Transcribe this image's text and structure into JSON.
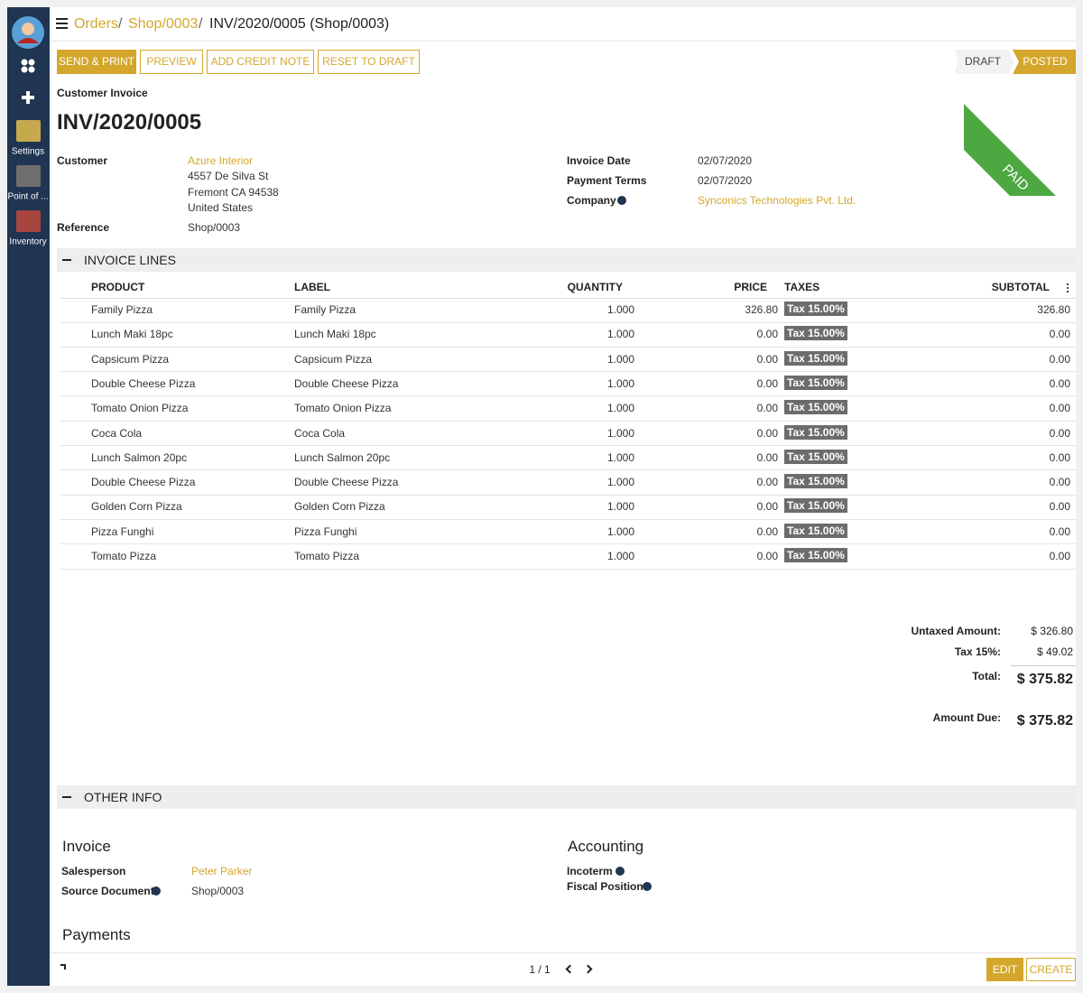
{
  "sidebar": {
    "apps": [
      "Settings",
      "Point of ...",
      "Inventory"
    ]
  },
  "breadcrumb": {
    "items": [
      "Orders",
      "Shop/0003",
      "INV/2020/0005 (Shop/0003)"
    ],
    "separator": "/"
  },
  "buttons": [
    "SEND & PRINT",
    "PREVIEW",
    "ADD CREDIT NOTE",
    "RESET TO DRAFT"
  ],
  "status": [
    "DRAFT",
    "POSTED"
  ],
  "ribbon": "PAID",
  "header": {
    "subtitle": "Customer Invoice",
    "title": "INV/2020/0005"
  },
  "customer": {
    "label": "Customer",
    "name": "Azure Interior",
    "address": [
      "4557 De Silva St",
      "Fremont CA 94538",
      "United States"
    ]
  },
  "reference": {
    "label": "Reference",
    "value": "Shop/0003"
  },
  "right_fields": [
    {
      "label": "Invoice Date",
      "value": "02/07/2020"
    },
    {
      "label": "Payment Terms",
      "value": "02/07/2020"
    },
    {
      "label": "Company",
      "value": "Synconics Technologies Pvt. Ltd."
    }
  ],
  "invoice_lines": {
    "title": "INVOICE LINES",
    "columns": [
      "PRODUCT",
      "LABEL",
      "QUANTITY",
      "PRICE",
      "TAXES",
      "SUBTOTAL"
    ],
    "rows": [
      [
        "Family Pizza",
        "Family Pizza",
        "1.000",
        "326.80",
        "Tax 15.00%",
        "326.80"
      ],
      [
        "Lunch Maki 18pc",
        "Lunch Maki 18pc",
        "1.000",
        "0.00",
        "Tax 15.00%",
        "0.00"
      ],
      [
        "Capsicum Pizza",
        "Capsicum Pizza",
        "1.000",
        "0.00",
        "Tax 15.00%",
        "0.00"
      ],
      [
        "Double Cheese Pizza",
        "Double Cheese Pizza",
        "1.000",
        "0.00",
        "Tax 15.00%",
        "0.00"
      ],
      [
        "Tomato Onion Pizza",
        "Tomato Onion Pizza",
        "1.000",
        "0.00",
        "Tax 15.00%",
        "0.00"
      ],
      [
        "Coca Cola",
        "Coca Cola",
        "1.000",
        "0.00",
        "Tax 15.00%",
        "0.00"
      ],
      [
        "Lunch Salmon 20pc",
        "Lunch Salmon 20pc",
        "1.000",
        "0.00",
        "Tax 15.00%",
        "0.00"
      ],
      [
        "Double Cheese Pizza",
        "Double Cheese Pizza",
        "1.000",
        "0.00",
        "Tax 15.00%",
        "0.00"
      ],
      [
        "Golden Corn Pizza",
        "Golden Corn Pizza",
        "1.000",
        "0.00",
        "Tax 15.00%",
        "0.00"
      ],
      [
        "Pizza Funghi",
        "Pizza Funghi",
        "1.000",
        "0.00",
        "Tax 15.00%",
        "0.00"
      ],
      [
        "Tomato Pizza",
        "Tomato Pizza",
        "1.000",
        "0.00",
        "Tax 15.00%",
        "0.00"
      ]
    ]
  },
  "totals": [
    {
      "label": "Untaxed Amount:",
      "value": "$ 326.80"
    },
    {
      "label": "Tax 15%:",
      "value": "$ 49.02"
    },
    {
      "label": "Total:",
      "value": "$ 375.82"
    },
    {
      "label": "Amount Due:",
      "value": "$ 375.82"
    }
  ],
  "other_info": {
    "title": "OTHER INFO",
    "invoice": {
      "title": "Invoice",
      "fields": [
        {
          "label": "Salesperson",
          "value": "Peter Parker"
        },
        {
          "label": "Source Document",
          "value": "Shop/0003"
        }
      ]
    },
    "accounting": {
      "title": "Accounting",
      "fields": [
        {
          "label": "Incoterm"
        },
        {
          "label": "Fiscal Position"
        }
      ]
    },
    "payments": {
      "title": "Payments"
    }
  },
  "pager": "1 / 1",
  "footer_buttons": [
    "EDIT",
    "CREATE"
  ]
}
